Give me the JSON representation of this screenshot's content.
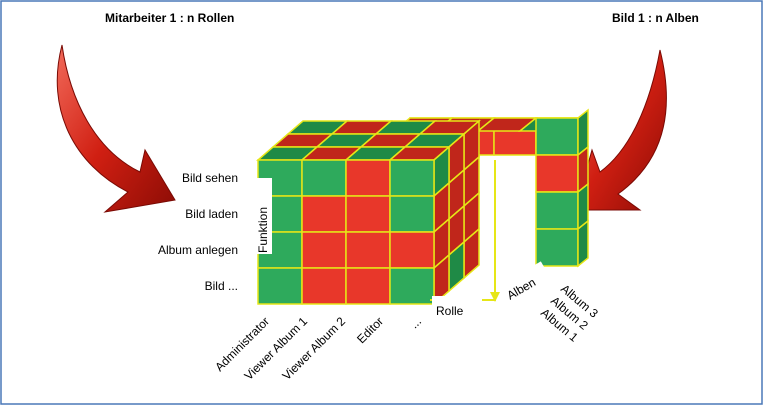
{
  "header": {
    "left": "Mitarbeiter 1 : n Rollen",
    "right": "Bild 1 : n Alben"
  },
  "axes": {
    "function": "Funktion",
    "role": "Rolle",
    "album": "Alben"
  },
  "functions": [
    "Bild sehen",
    "Bild laden",
    "Album anlegen",
    "Bild ..."
  ],
  "roles": [
    "Administrator",
    "Viewer Album 1",
    "Viewer Album 2",
    "Editor",
    "..."
  ],
  "albums": [
    "Album 3",
    "Album 2",
    "Album 1"
  ]
}
